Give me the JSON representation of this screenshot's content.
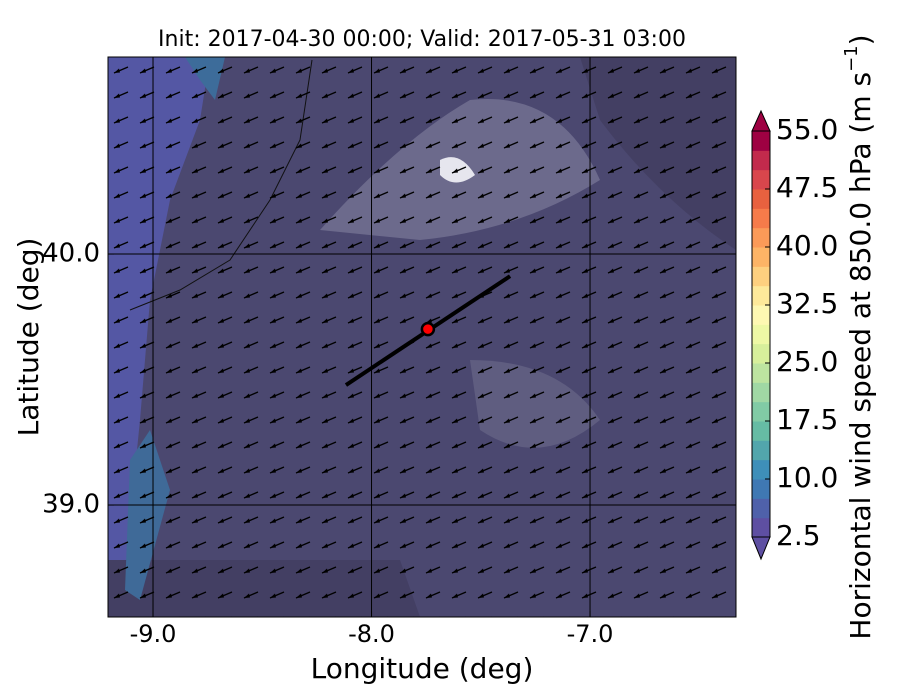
{
  "chart_data": {
    "type": "map",
    "title": "Init: 2017-04-30 00:00; Valid: 2017-05-31 03:00",
    "xlabel": "Longitude (deg)",
    "ylabel": "Latitude (deg)",
    "xlim": [
      -9.206,
      -6.332
    ],
    "ylim": [
      38.554,
      40.785
    ],
    "xticks": [
      {
        "value": -9,
        "label": "-9.0"
      },
      {
        "value": -8,
        "label": "-8.0"
      },
      {
        "value": -7,
        "label": "-7.0"
      }
    ],
    "yticks": [
      {
        "value": 39,
        "label": "39.0"
      },
      {
        "value": 40,
        "label": "40.0"
      }
    ],
    "grid": true,
    "series": [
      {
        "type": "line",
        "color": "#000000",
        "x": [
          -8.117,
          -7.366
        ],
        "y": [
          39.478,
          39.912
        ]
      },
      {
        "type": "point",
        "color": "#ff0000",
        "x": [
          -7.742
        ],
        "y": [
          39.701
        ]
      }
    ],
    "colorbar": {
      "label": "Horizontal wind speed at 850.0 hPa (m s",
      "label_exponent": "−1",
      "label_end": ")",
      "clim": [
        2.5,
        55
      ],
      "ticks": [
        {
          "value": 2.5,
          "label": "2.5"
        },
        {
          "value": 10,
          "label": "10.0"
        },
        {
          "value": 17.5,
          "label": "17.5"
        },
        {
          "value": 25,
          "label": "25.0"
        },
        {
          "value": 32.5,
          "label": "32.5"
        },
        {
          "value": 40,
          "label": "40.0"
        },
        {
          "value": 47.5,
          "label": "47.5"
        },
        {
          "value": 55,
          "label": "55.0"
        }
      ],
      "colors": [
        "#5e4fa2",
        "#4f61aa",
        "#3f78b3",
        "#3e8fb9",
        "#52a6ac",
        "#66bca4",
        "#81cba5",
        "#a0d8a4",
        "#bde4a0",
        "#d7ef9b",
        "#eef8a5",
        "#fef8b2",
        "#fee99a",
        "#fed07f",
        "#fdb466",
        "#fb9a58",
        "#f67b4a",
        "#e8613f",
        "#d9464c",
        "#c22a4c",
        "#9e0142"
      ],
      "under_color": "#5e4fa2",
      "over_color": "#9e0142"
    }
  }
}
